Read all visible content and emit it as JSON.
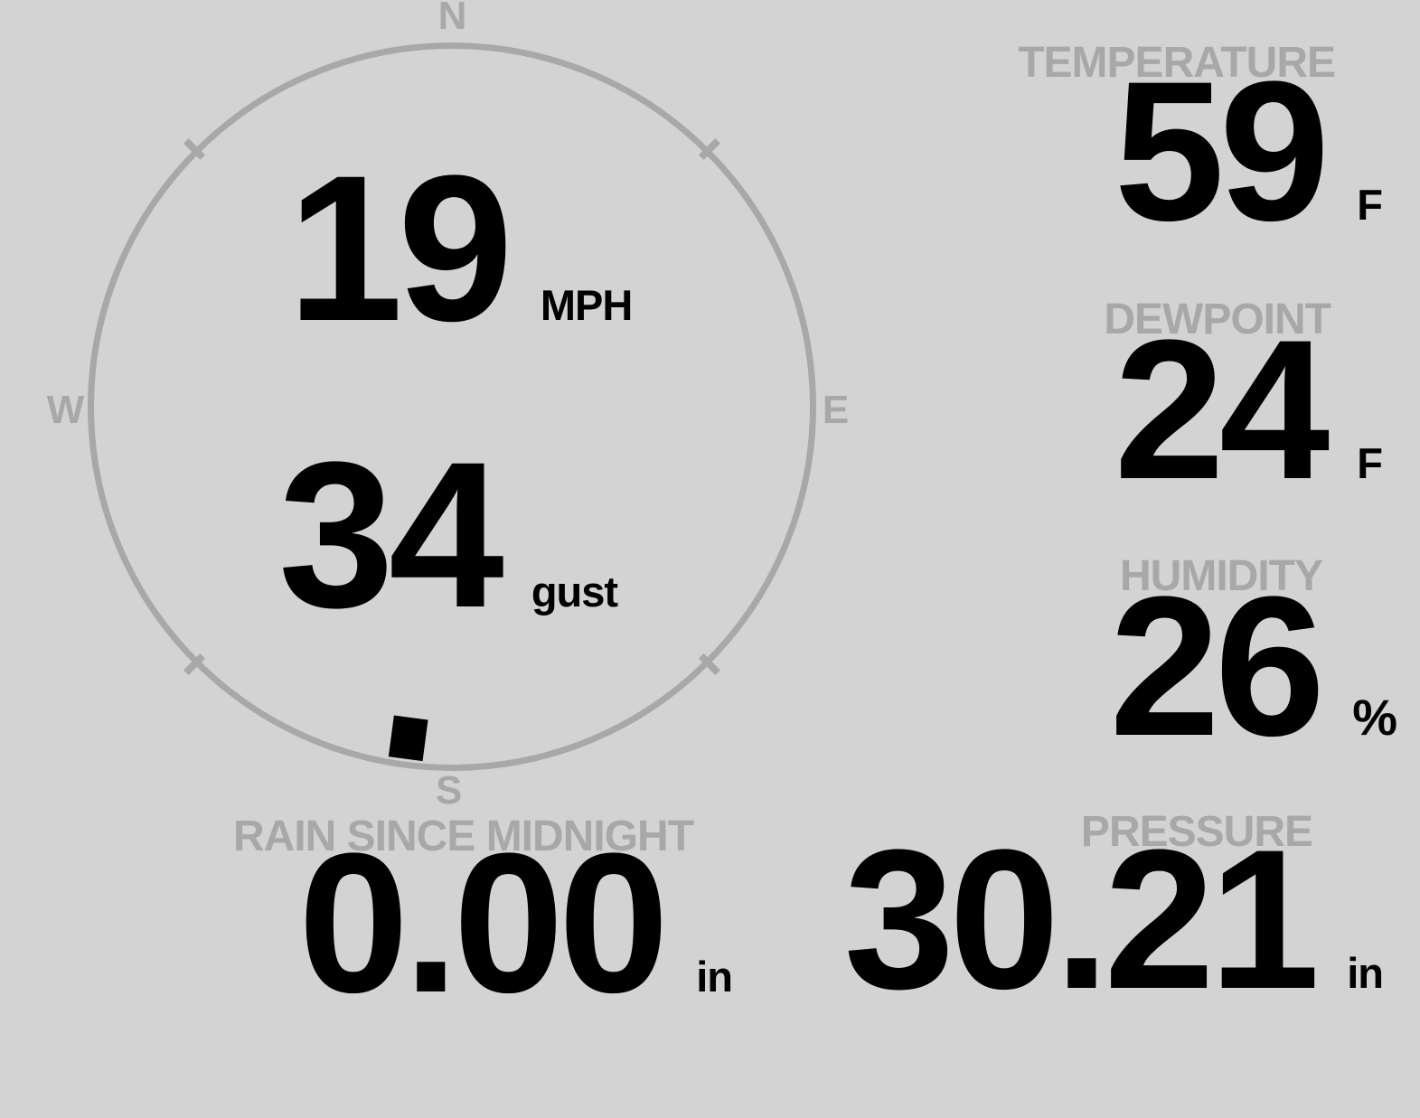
{
  "colors": {
    "background": "#d3d3d3",
    "muted_label": "#a8a8a8",
    "value_text": "#000000"
  },
  "compass": {
    "cardinals": {
      "n": "N",
      "e": "E",
      "s": "S",
      "w": "W"
    },
    "wind_speed": "19",
    "wind_speed_unit": "MPH",
    "wind_gust": "34",
    "wind_gust_unit": "gust",
    "wind_direction_deg": 187.5,
    "marker_icon": "wind-direction-marker"
  },
  "panels": {
    "temperature": {
      "label": "TEMPERATURE",
      "value": "59",
      "unit": "F"
    },
    "dewpoint": {
      "label": "DEWPOINT",
      "value": "24",
      "unit": "F"
    },
    "humidity": {
      "label": "HUMIDITY",
      "value": "26",
      "unit": "%"
    },
    "rain": {
      "label": "RAIN SINCE MIDNIGHT",
      "value": "0.00",
      "unit": "in"
    },
    "pressure": {
      "label": "PRESSURE",
      "value": "30.21",
      "unit": "in"
    }
  }
}
